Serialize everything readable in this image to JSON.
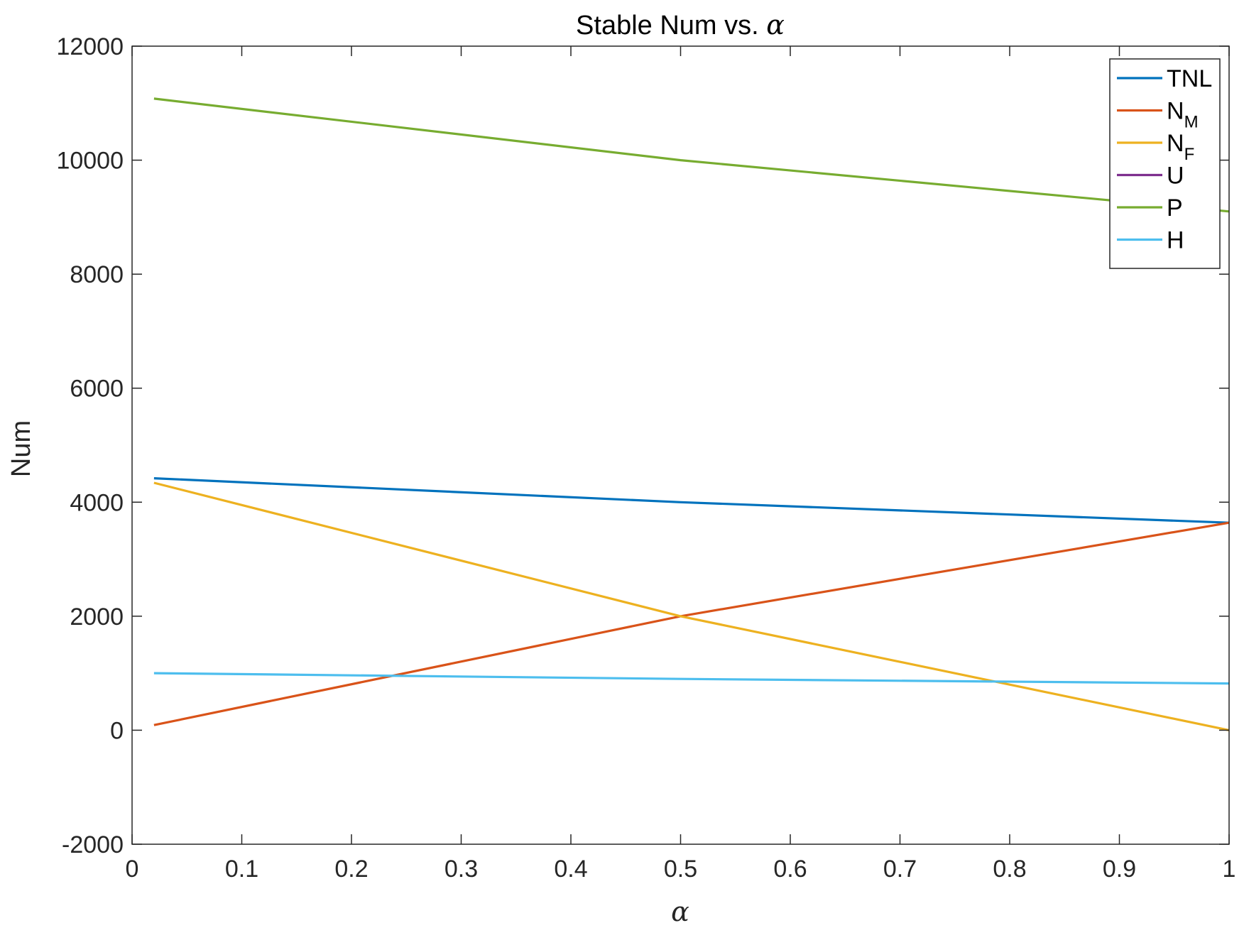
{
  "chart_data": {
    "type": "line",
    "title": "Stable Num vs. ",
    "title_symbol": "α",
    "xlabel": "α",
    "ylabel": "Num",
    "xlim": [
      0,
      1
    ],
    "ylim": [
      -2000,
      12000
    ],
    "x_ticks": [
      0,
      0.1,
      0.2,
      0.3,
      0.4,
      0.5,
      0.6,
      0.7,
      0.8,
      0.9,
      1
    ],
    "x_tick_labels": [
      "0",
      "0.1",
      "0.2",
      "0.3",
      "0.4",
      "0.5",
      "0.6",
      "0.7",
      "0.8",
      "0.9",
      "1"
    ],
    "y_ticks": [
      -2000,
      0,
      2000,
      4000,
      6000,
      8000,
      10000,
      12000
    ],
    "y_tick_labels": [
      "-2000",
      "0",
      "2000",
      "4000",
      "6000",
      "8000",
      "10000",
      "12000"
    ],
    "grid": false,
    "legend_position": "top-right",
    "series": [
      {
        "name": "TNL",
        "name_main": "TNL",
        "name_sub": "",
        "color": "#0072BD",
        "x": [
          0.02,
          0.5,
          1
        ],
        "y": [
          4420,
          4000,
          3640
        ]
      },
      {
        "name": "N_M",
        "name_main": "N",
        "name_sub": "M",
        "color": "#D95319",
        "x": [
          0.02,
          0.5,
          1
        ],
        "y": [
          90,
          2000,
          3640
        ]
      },
      {
        "name": "N_F",
        "name_main": "N",
        "name_sub": "F",
        "color": "#EDB120",
        "x": [
          0.02,
          0.5,
          1
        ],
        "y": [
          4340,
          2000,
          0
        ]
      },
      {
        "name": "U",
        "name_main": "U",
        "name_sub": "",
        "color": "#7E2F8E",
        "x": [],
        "y": []
      },
      {
        "name": "P",
        "name_main": "P",
        "name_sub": "",
        "color": "#77AC30",
        "x": [
          0.02,
          0.5,
          1
        ],
        "y": [
          11080,
          10000,
          9100
        ]
      },
      {
        "name": "H",
        "name_main": "H",
        "name_sub": "",
        "color": "#4DBEEE",
        "x": [
          0.02,
          0.5,
          1
        ],
        "y": [
          1000,
          900,
          820
        ]
      }
    ]
  }
}
